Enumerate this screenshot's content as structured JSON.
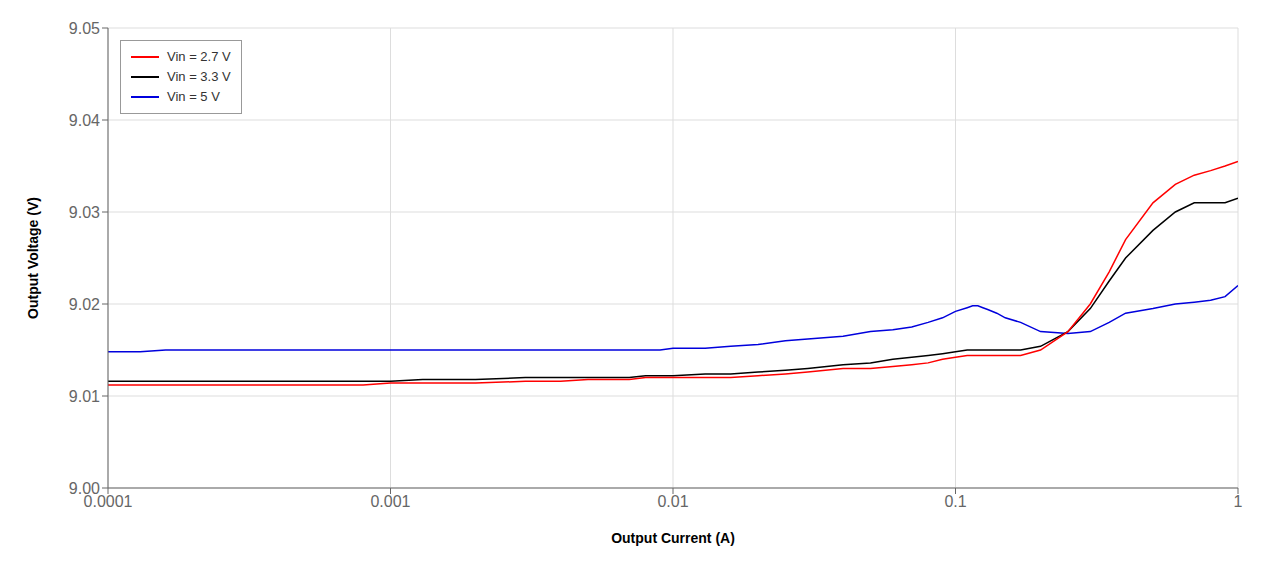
{
  "chart_data": {
    "type": "line",
    "xlabel": "Output Current (A)",
    "ylabel": "Output Voltage (V)",
    "log": "x",
    "grid": true,
    "legend": "upper left",
    "xlim": [
      0.0001,
      1.0
    ],
    "ylim": [
      9.0,
      9.05
    ],
    "xticks": [
      0.0001,
      0.001,
      0.01,
      0.1,
      1
    ],
    "yticks": [
      {
        "value": 9.0,
        "label": "9.00"
      },
      9.01,
      9.02,
      9.03,
      9.04,
      9.05
    ],
    "series": [
      {
        "name": "Vin = 2.7 V",
        "color": "#ff0000",
        "x": [
          0.0001,
          0.00013,
          0.00016,
          0.0002,
          0.00025,
          0.0003,
          0.0004,
          0.0005,
          0.0006,
          0.0007,
          0.0008,
          0.001,
          0.0013,
          0.0016,
          0.002,
          0.003,
          0.004,
          0.005,
          0.006,
          0.007,
          0.008,
          0.009,
          0.01,
          0.013,
          0.016,
          0.02,
          0.025,
          0.03,
          0.04,
          0.05,
          0.06,
          0.07,
          0.08,
          0.09,
          0.1,
          0.11,
          0.12,
          0.13,
          0.14,
          0.15,
          0.17,
          0.2,
          0.25,
          0.3,
          0.35,
          0.4,
          0.5,
          0.6,
          0.7,
          0.8,
          0.9,
          1.0
        ],
        "values": [
          9.0112,
          9.0112,
          9.0112,
          9.0112,
          9.0112,
          9.0112,
          9.0112,
          9.0112,
          9.0112,
          9.0112,
          9.0112,
          9.0114,
          9.0114,
          9.0114,
          9.0114,
          9.0116,
          9.0116,
          9.0118,
          9.0118,
          9.0118,
          9.012,
          9.012,
          9.012,
          9.012,
          9.012,
          9.0122,
          9.0124,
          9.0126,
          9.013,
          9.013,
          9.0132,
          9.0134,
          9.0136,
          9.014,
          9.0142,
          9.0144,
          9.0144,
          9.0144,
          9.0144,
          9.0144,
          9.0144,
          9.015,
          9.017,
          9.02,
          9.0235,
          9.027,
          9.031,
          9.033,
          9.034,
          9.0345,
          9.035,
          9.0355
        ]
      },
      {
        "name": "Vin = 3.3 V",
        "color": "#000000",
        "x": [
          0.0001,
          0.00013,
          0.00016,
          0.0002,
          0.00025,
          0.0003,
          0.0004,
          0.0005,
          0.0006,
          0.0007,
          0.0008,
          0.001,
          0.0013,
          0.0016,
          0.002,
          0.003,
          0.004,
          0.005,
          0.006,
          0.007,
          0.008,
          0.009,
          0.01,
          0.013,
          0.016,
          0.02,
          0.025,
          0.03,
          0.04,
          0.05,
          0.06,
          0.07,
          0.08,
          0.09,
          0.1,
          0.11,
          0.12,
          0.13,
          0.14,
          0.15,
          0.17,
          0.2,
          0.25,
          0.3,
          0.35,
          0.4,
          0.5,
          0.6,
          0.7,
          0.8,
          0.9,
          1.0
        ],
        "values": [
          9.0116,
          9.0116,
          9.0116,
          9.0116,
          9.0116,
          9.0116,
          9.0116,
          9.0116,
          9.0116,
          9.0116,
          9.0116,
          9.0116,
          9.0118,
          9.0118,
          9.0118,
          9.012,
          9.012,
          9.012,
          9.012,
          9.012,
          9.0122,
          9.0122,
          9.0122,
          9.0124,
          9.0124,
          9.0126,
          9.0128,
          9.013,
          9.0134,
          9.0136,
          9.014,
          9.0142,
          9.0144,
          9.0146,
          9.0148,
          9.015,
          9.015,
          9.015,
          9.015,
          9.015,
          9.015,
          9.0154,
          9.017,
          9.0195,
          9.0225,
          9.025,
          9.028,
          9.03,
          9.031,
          9.031,
          9.031,
          9.0315
        ]
      },
      {
        "name": "Vin = 5 V",
        "color": "#0000dd",
        "x": [
          0.0001,
          0.00013,
          0.00016,
          0.0002,
          0.00025,
          0.0003,
          0.0004,
          0.0005,
          0.0006,
          0.0007,
          0.0008,
          0.001,
          0.0013,
          0.0016,
          0.002,
          0.003,
          0.004,
          0.005,
          0.006,
          0.007,
          0.008,
          0.009,
          0.01,
          0.013,
          0.016,
          0.02,
          0.025,
          0.03,
          0.04,
          0.05,
          0.06,
          0.07,
          0.08,
          0.09,
          0.1,
          0.11,
          0.115,
          0.12,
          0.125,
          0.13,
          0.14,
          0.15,
          0.17,
          0.2,
          0.25,
          0.3,
          0.35,
          0.4,
          0.5,
          0.6,
          0.7,
          0.8,
          0.9,
          1.0
        ],
        "values": [
          9.0148,
          9.0148,
          9.015,
          9.015,
          9.015,
          9.015,
          9.015,
          9.015,
          9.015,
          9.015,
          9.015,
          9.015,
          9.015,
          9.015,
          9.015,
          9.015,
          9.015,
          9.015,
          9.015,
          9.015,
          9.015,
          9.015,
          9.0152,
          9.0152,
          9.0154,
          9.0156,
          9.016,
          9.0162,
          9.0165,
          9.017,
          9.0172,
          9.0175,
          9.018,
          9.0185,
          9.0192,
          9.0196,
          9.0198,
          9.0198,
          9.0196,
          9.0194,
          9.019,
          9.0185,
          9.018,
          9.017,
          9.0168,
          9.017,
          9.018,
          9.019,
          9.0195,
          9.02,
          9.0202,
          9.0204,
          9.0208,
          9.022
        ]
      }
    ]
  }
}
